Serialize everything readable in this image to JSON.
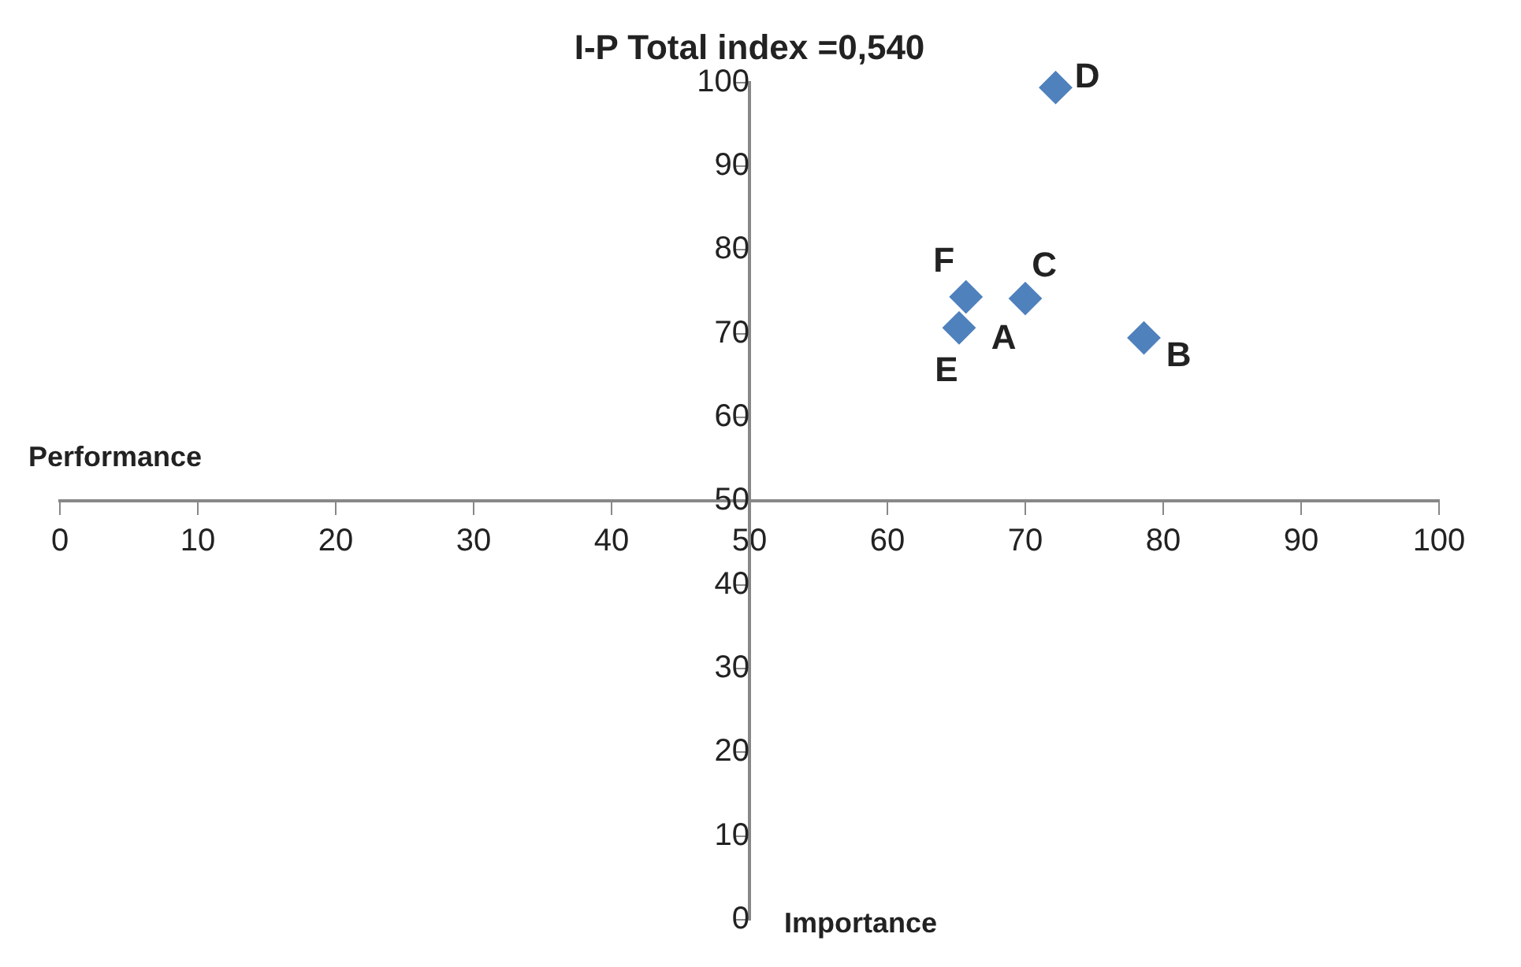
{
  "chart_data": {
    "type": "scatter",
    "title": "I-P Total index =0,540",
    "xlabel": "Importance",
    "ylabel": "Performance",
    "series": [
      {
        "color": "#4f81bd",
        "x": [
          null,
          78.6,
          70.0,
          72.2,
          65.2,
          65.7
        ],
        "values": [
          null,
          69.5,
          74.2,
          99.4,
          70.7,
          74.4
        ]
      }
    ],
    "annotations": [
      {
        "text": "A",
        "x": 69.8,
        "y": 73.8
      },
      {
        "text": "B",
        "x": 78.6,
        "y": 69.5
      },
      {
        "text": "C",
        "x": 70.0,
        "y": 74.2
      },
      {
        "text": "D",
        "x": 72.2,
        "y": 99.4
      },
      {
        "text": "E",
        "x": 65.2,
        "y": 70.7
      },
      {
        "text": "F",
        "x": 65.7,
        "y": 74.4
      }
    ],
    "xlim": [
      0,
      100
    ],
    "ylim": [
      0,
      100
    ],
    "xticks": [
      0,
      10,
      20,
      30,
      40,
      50,
      60,
      70,
      80,
      90,
      100
    ],
    "yticks": [
      0,
      10,
      20,
      30,
      40,
      50,
      60,
      70,
      80,
      90,
      100
    ],
    "grid": false,
    "legend": false,
    "marker": "diamond"
  }
}
